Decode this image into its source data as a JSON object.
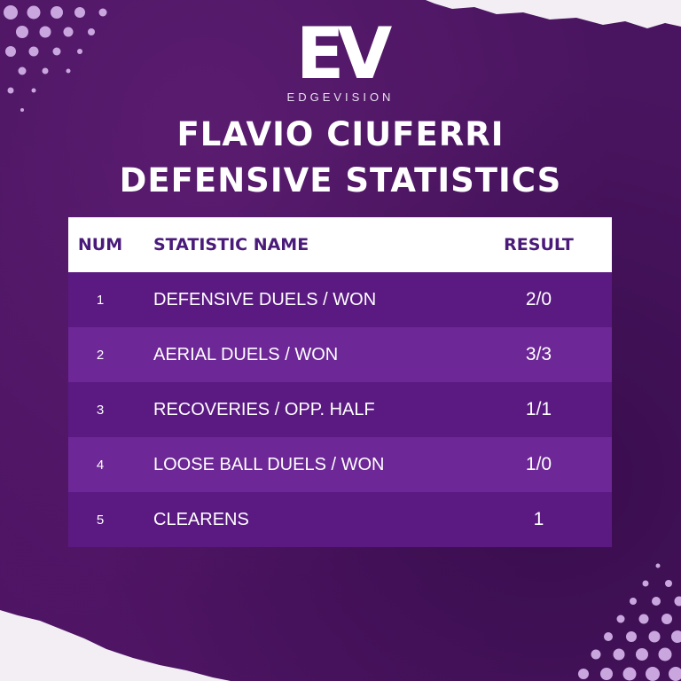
{
  "brand": {
    "mark": "EV",
    "name": "EDGEVISION"
  },
  "title": {
    "line1": "FLAVIO CIUFERRI",
    "line2": "DEFENSIVE STATISTICS"
  },
  "table": {
    "headers": {
      "num": "NUM",
      "name": "STATISTIC NAME",
      "result": "RESULT"
    },
    "rows": [
      {
        "num": "1",
        "name": "DEFENSIVE DUELS / WON",
        "result": "2/0"
      },
      {
        "num": "2",
        "name": "AERIAL DUELS / WON",
        "result": "3/3"
      },
      {
        "num": "3",
        "name": "RECOVERIES / OPP. HALF",
        "result": "1/1"
      },
      {
        "num": "4",
        "name": "LOOSE BALL DUELS / WON",
        "result": "1/0"
      },
      {
        "num": "5",
        "name": "CLEARENS",
        "result": "1"
      }
    ]
  },
  "colors": {
    "background": "#4a1560",
    "header_bg": "#ffffff",
    "header_text": "#4a1a7a",
    "row_dark": "#5a1a82",
    "row_light": "#6d2797"
  }
}
